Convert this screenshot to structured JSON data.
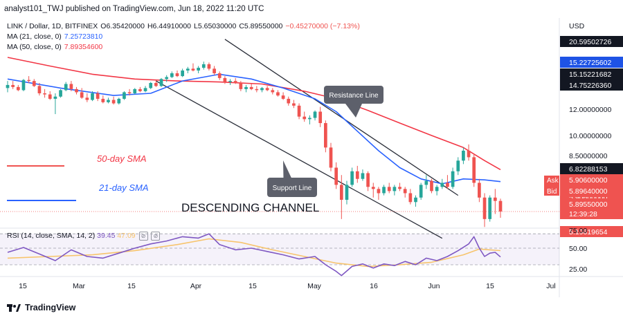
{
  "header": {
    "published": "analyst101_TWJ published on TradingView.com, Jun 18, 2022 11:20 UTC"
  },
  "legend": {
    "symbol": "LINK / Dollar, 1D, BITFINEX",
    "open": "O6.35420000",
    "high": "H6.44910000",
    "low": "L5.65030000",
    "close": "C5.89550000",
    "change": "−0.45270000 (−7.13%)",
    "ma21_label": "MA (21, close, 0)",
    "ma21_value": "7.25723810",
    "ma50_label": "MA (50, close, 0)",
    "ma50_value": "7.89354600"
  },
  "annotations": {
    "resistance": "Resistance Line",
    "support": "Support Line",
    "sma50": "50-day SMA",
    "sma21": "21-day SMA",
    "channel": "DESCENDING CHANNEL"
  },
  "price_axis": {
    "currency": "USD",
    "tags": [
      {
        "text": "20.59502726",
        "color": "#131722"
      },
      {
        "text": "15.22725602",
        "color": "#1e53e5"
      },
      {
        "text": "15.15221682",
        "color": "#131722"
      },
      {
        "text": "14.75226360",
        "color": "#131722"
      },
      {
        "text": "6.82288153",
        "color": "#131722"
      },
      {
        "text": "5.90600000",
        "color": "#ef5350"
      },
      {
        "text": "5.89640000",
        "color": "#ef5350"
      },
      {
        "text": "5.89550000",
        "color": "#ef5350"
      },
      {
        "text": "12:39:28",
        "color": "#ef5350"
      },
      {
        "text": "5.19619654",
        "color": "#ef5350"
      }
    ],
    "ask_label": "Ask",
    "bid_label": "Bid",
    "ticks": [
      "12.00000000",
      "10.00000000",
      "8.50000000"
    ]
  },
  "rsi": {
    "legend": "RSI (14, close, SMA, 14, 2)",
    "value1": "39.45",
    "value2": "47.09",
    "ticks": [
      "75.00",
      "50.00",
      "25.00"
    ]
  },
  "time_axis": {
    "labels": [
      "15",
      "Mar",
      "15",
      "Apr",
      "15",
      "May",
      "16",
      "Jun",
      "15",
      "Jul"
    ]
  },
  "footer": {
    "brand": "TradingView"
  },
  "colors": {
    "up": "#26a69a",
    "down": "#ef5350",
    "ma21": "#2962ff",
    "ma50": "#f23645",
    "rsi": "#7e57c2",
    "rsi_ma": "#f7c46c",
    "channel": "#2a2e39",
    "last_price": "#ef5350"
  },
  "chart_data": {
    "type": "candlestick",
    "title": "LINK / Dollar, 1D, BITFINEX",
    "scale": "log",
    "ylim": [
      5,
      23
    ],
    "candles": [
      [
        13.9,
        14.6,
        13.5,
        14.2
      ],
      [
        14.2,
        14.6,
        13.8,
        14.0
      ],
      [
        14.0,
        14.2,
        13.6,
        13.7
      ],
      [
        13.7,
        14.8,
        13.6,
        14.7
      ],
      [
        14.7,
        15.1,
        14.4,
        14.6
      ],
      [
        14.6,
        14.8,
        14.0,
        14.1
      ],
      [
        14.1,
        14.4,
        13.2,
        13.4
      ],
      [
        13.4,
        13.8,
        13.0,
        13.3
      ],
      [
        13.3,
        13.6,
        12.8,
        12.9
      ],
      [
        12.9,
        13.4,
        11.6,
        13.1
      ],
      [
        13.1,
        13.8,
        13.0,
        13.7
      ],
      [
        13.7,
        14.5,
        13.6,
        14.3
      ],
      [
        14.3,
        14.6,
        13.6,
        13.8
      ],
      [
        13.8,
        14.0,
        13.3,
        13.5
      ],
      [
        13.5,
        13.9,
        12.9,
        13.0
      ],
      [
        13.0,
        13.4,
        12.6,
        12.8
      ],
      [
        12.8,
        13.6,
        12.7,
        13.4
      ],
      [
        13.4,
        13.6,
        12.7,
        12.9
      ],
      [
        12.9,
        13.2,
        12.5,
        12.6
      ],
      [
        12.6,
        13.0,
        12.5,
        12.8
      ],
      [
        12.8,
        13.1,
        12.4,
        12.5
      ],
      [
        12.5,
        13.0,
        12.4,
        12.9
      ],
      [
        12.9,
        13.6,
        12.8,
        13.5
      ],
      [
        13.5,
        13.8,
        13.2,
        13.4
      ],
      [
        13.4,
        13.9,
        13.3,
        13.8
      ],
      [
        13.8,
        14.0,
        13.5,
        13.6
      ],
      [
        13.6,
        14.1,
        13.5,
        13.9
      ],
      [
        13.9,
        14.5,
        13.8,
        14.4
      ],
      [
        14.4,
        14.7,
        14.0,
        14.1
      ],
      [
        14.1,
        14.9,
        14.0,
        14.8
      ],
      [
        14.8,
        15.2,
        14.5,
        15.0
      ],
      [
        15.0,
        15.6,
        14.9,
        15.4
      ],
      [
        15.4,
        15.7,
        15.0,
        15.1
      ],
      [
        15.1,
        15.9,
        15.0,
        15.7
      ],
      [
        15.7,
        16.1,
        15.4,
        15.9
      ],
      [
        15.9,
        16.5,
        15.6,
        15.7
      ],
      [
        15.7,
        16.2,
        15.4,
        16.0
      ],
      [
        16.0,
        16.7,
        15.8,
        16.4
      ],
      [
        16.4,
        16.6,
        15.7,
        15.9
      ],
      [
        15.9,
        16.2,
        15.2,
        15.4
      ],
      [
        15.4,
        15.6,
        14.7,
        14.9
      ],
      [
        14.9,
        15.1,
        14.3,
        14.5
      ],
      [
        14.5,
        14.8,
        14.2,
        14.6
      ],
      [
        14.6,
        14.9,
        14.3,
        14.4
      ],
      [
        14.4,
        14.6,
        13.6,
        13.8
      ],
      [
        13.8,
        14.2,
        13.5,
        14.0
      ],
      [
        14.0,
        14.3,
        13.7,
        13.8
      ],
      [
        13.8,
        14.1,
        13.5,
        13.7
      ],
      [
        13.7,
        14.0,
        13.5,
        13.9
      ],
      [
        13.9,
        14.1,
        13.6,
        13.7
      ],
      [
        13.7,
        13.9,
        13.3,
        13.5
      ],
      [
        13.5,
        13.7,
        13.1,
        13.2
      ],
      [
        13.2,
        13.5,
        12.8,
        12.9
      ],
      [
        12.9,
        13.1,
        12.3,
        12.5
      ],
      [
        12.5,
        12.8,
        12.1,
        12.3
      ],
      [
        12.3,
        12.5,
        11.2,
        11.4
      ],
      [
        11.4,
        11.8,
        11.0,
        11.2
      ],
      [
        11.2,
        11.5,
        10.8,
        11.3
      ],
      [
        11.3,
        11.9,
        11.1,
        11.8
      ],
      [
        11.8,
        12.2,
        10.6,
        10.9
      ],
      [
        10.9,
        11.1,
        8.9,
        9.2
      ],
      [
        9.2,
        9.5,
        7.8,
        8.0
      ],
      [
        8.0,
        8.3,
        6.9,
        7.1
      ],
      [
        7.1,
        7.6,
        5.6,
        6.4
      ],
      [
        6.4,
        7.3,
        6.2,
        7.1
      ],
      [
        7.1,
        8.0,
        7.0,
        7.8
      ],
      [
        7.8,
        8.1,
        7.2,
        7.4
      ],
      [
        7.4,
        7.9,
        7.3,
        7.7
      ],
      [
        7.7,
        7.8,
        6.8,
        7.0
      ],
      [
        7.0,
        7.2,
        6.5,
        6.9
      ],
      [
        6.9,
        7.0,
        6.4,
        6.7
      ],
      [
        6.7,
        7.1,
        6.6,
        7.0
      ],
      [
        7.0,
        7.2,
        6.7,
        6.8
      ],
      [
        6.8,
        7.1,
        6.6,
        7.0
      ],
      [
        7.0,
        7.2,
        6.8,
        6.9
      ],
      [
        6.9,
        7.0,
        6.5,
        6.7
      ],
      [
        6.7,
        6.9,
        6.2,
        6.3
      ],
      [
        6.3,
        6.6,
        6.1,
        6.5
      ],
      [
        6.5,
        7.2,
        6.4,
        7.1
      ],
      [
        7.1,
        7.6,
        6.9,
        7.3
      ],
      [
        7.3,
        7.4,
        6.7,
        6.8
      ],
      [
        6.8,
        7.1,
        6.6,
        7.0
      ],
      [
        7.0,
        7.4,
        6.9,
        7.2
      ],
      [
        7.2,
        7.6,
        6.9,
        7.0
      ],
      [
        7.0,
        8.0,
        6.9,
        7.8
      ],
      [
        7.8,
        8.6,
        7.6,
        8.4
      ],
      [
        8.4,
        9.2,
        8.2,
        9.0
      ],
      [
        9.0,
        9.4,
        8.4,
        8.6
      ],
      [
        8.6,
        8.8,
        7.0,
        7.2
      ],
      [
        7.2,
        7.4,
        6.3,
        6.5
      ],
      [
        6.5,
        6.7,
        5.3,
        5.6
      ],
      [
        5.6,
        6.6,
        5.5,
        6.5
      ],
      [
        6.5,
        6.9,
        5.8,
        6.35
      ],
      [
        6.35,
        6.45,
        5.65,
        5.9
      ]
    ],
    "ma21": [
      [
        0,
        14.8
      ],
      [
        10,
        13.9
      ],
      [
        20,
        13.2
      ],
      [
        27,
        13.4
      ],
      [
        33,
        14.6
      ],
      [
        40,
        15.3
      ],
      [
        46,
        14.8
      ],
      [
        52,
        13.9
      ],
      [
        58,
        12.9
      ],
      [
        62,
        11.8
      ],
      [
        66,
        10.3
      ],
      [
        70,
        9.0
      ],
      [
        74,
        8.0
      ],
      [
        78,
        7.4
      ],
      [
        82,
        7.15
      ],
      [
        86,
        7.4
      ],
      [
        90,
        7.35
      ],
      [
        93,
        7.26
      ]
    ],
    "ma50": [
      [
        0,
        17.2
      ],
      [
        8,
        16.2
      ],
      [
        16,
        15.3
      ],
      [
        24,
        14.8
      ],
      [
        32,
        14.6
      ],
      [
        40,
        14.5
      ],
      [
        48,
        14.3
      ],
      [
        56,
        13.6
      ],
      [
        62,
        12.9
      ],
      [
        68,
        11.9
      ],
      [
        74,
        10.9
      ],
      [
        80,
        10.0
      ],
      [
        86,
        9.2
      ],
      [
        90,
        8.4
      ],
      [
        93,
        7.89
      ]
    ],
    "rsi": [
      [
        0,
        45
      ],
      [
        3,
        51
      ],
      [
        6,
        43
      ],
      [
        9,
        35
      ],
      [
        12,
        48
      ],
      [
        15,
        40
      ],
      [
        18,
        38
      ],
      [
        21,
        44
      ],
      [
        24,
        50
      ],
      [
        27,
        56
      ],
      [
        30,
        60
      ],
      [
        33,
        66
      ],
      [
        36,
        64
      ],
      [
        38,
        70
      ],
      [
        40,
        55
      ],
      [
        43,
        48
      ],
      [
        46,
        50
      ],
      [
        49,
        46
      ],
      [
        52,
        42
      ],
      [
        55,
        37
      ],
      [
        58,
        40
      ],
      [
        60,
        30
      ],
      [
        62,
        22
      ],
      [
        63,
        17
      ],
      [
        65,
        28
      ],
      [
        67,
        31
      ],
      [
        69,
        26
      ],
      [
        71,
        31
      ],
      [
        73,
        29
      ],
      [
        75,
        34
      ],
      [
        77,
        30
      ],
      [
        79,
        38
      ],
      [
        81,
        35
      ],
      [
        83,
        40
      ],
      [
        85,
        47
      ],
      [
        87,
        56
      ],
      [
        88,
        66
      ],
      [
        89,
        50
      ],
      [
        90,
        40
      ],
      [
        91,
        44
      ],
      [
        92,
        45
      ],
      [
        93,
        39.45
      ]
    ],
    "rsi_ma": [
      [
        0,
        38
      ],
      [
        8,
        40
      ],
      [
        16,
        42
      ],
      [
        24,
        47
      ],
      [
        32,
        55
      ],
      [
        38,
        63
      ],
      [
        44,
        58
      ],
      [
        50,
        48
      ],
      [
        56,
        40
      ],
      [
        62,
        32
      ],
      [
        68,
        28
      ],
      [
        74,
        30
      ],
      [
        80,
        33
      ],
      [
        86,
        42
      ],
      [
        89,
        49
      ],
      [
        91,
        48
      ],
      [
        93,
        47.09
      ]
    ],
    "rsi_levels": [
      70,
      50,
      30
    ],
    "channel_lines": [
      {
        "name": "upper",
        "points": [
          [
            41,
            19.5
          ],
          [
            85,
            6.6
          ]
        ]
      },
      {
        "name": "lower",
        "points": [
          [
            28,
            14.6
          ],
          [
            82,
            4.9
          ]
        ]
      }
    ]
  }
}
